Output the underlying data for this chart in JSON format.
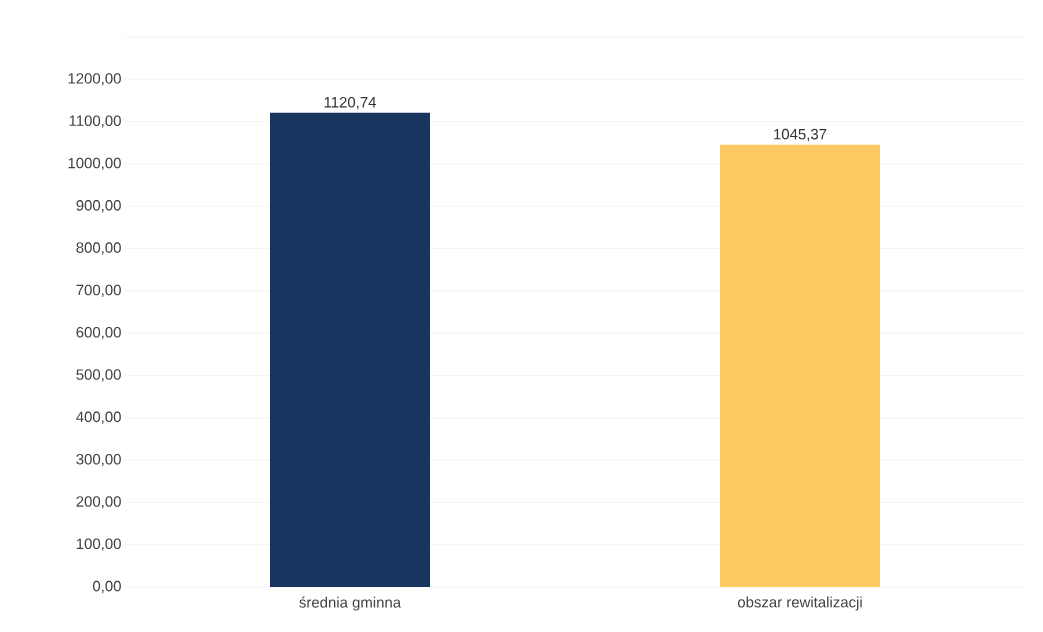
{
  "chart_data": {
    "type": "bar",
    "categories": [
      "średnia gminna",
      "obszar rewitalizacji"
    ],
    "values": [
      1120.74,
      1045.37
    ],
    "colors": [
      "#17355e",
      "#fcc962"
    ],
    "value_labels": [
      "1120,74",
      "1045,37"
    ],
    "ylim": [
      0,
      1300
    ],
    "yticks": [
      {
        "value": 0,
        "label": "0,00"
      },
      {
        "value": 100,
        "label": "100,00"
      },
      {
        "value": 200,
        "label": "200,00"
      },
      {
        "value": 300,
        "label": "300,00"
      },
      {
        "value": 400,
        "label": "400,00"
      },
      {
        "value": 500,
        "label": "500,00"
      },
      {
        "value": 600,
        "label": "600,00"
      },
      {
        "value": 700,
        "label": "700,00"
      },
      {
        "value": 800,
        "label": "800,00"
      },
      {
        "value": 900,
        "label": "900,00"
      },
      {
        "value": 1000,
        "label": "1000,00"
      },
      {
        "value": 1100,
        "label": "1100,00"
      },
      {
        "value": 1200,
        "label": "1200,00"
      },
      {
        "value": 1300,
        "label": null
      }
    ],
    "grid": "y"
  }
}
